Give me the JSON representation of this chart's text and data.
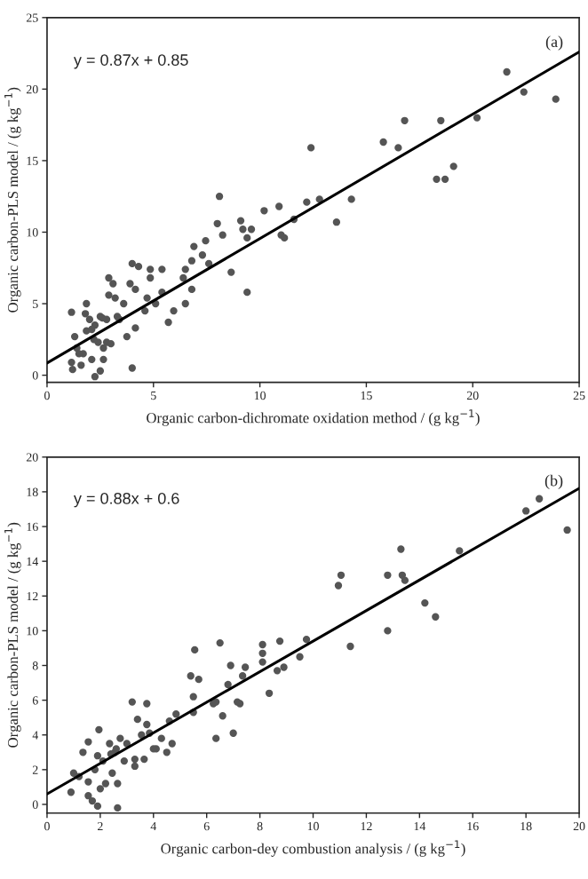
{
  "chart_data": [
    {
      "type": "scatter",
      "xlabel": "Organic carbon-dichromate oxidation method / (g kg$^{−1}$)",
      "ylabel": "Organic carbon-PLS model / (g kg$^{−1}$)",
      "annotations": [
        "y = 0.87x + 0.85",
        "(a)"
      ],
      "xlim": [
        0,
        25
      ],
      "ylim": [
        -0.5,
        25
      ],
      "xticks": [
        0,
        5,
        10,
        15,
        20,
        25
      ],
      "yticks": [
        0,
        5,
        10,
        15,
        20,
        25
      ],
      "grid": false,
      "legend": false,
      "series": [
        {
          "marker": "circle",
          "color": "#555555",
          "x": [
            1.15,
            1.3,
            1.4,
            1.15,
            1.6,
            1.7,
            1.85,
            2.0,
            1.85,
            2.25,
            2.4,
            2.1,
            2.25,
            2.5,
            2.65,
            2.8,
            2.5,
            2.9,
            3.1,
            2.9,
            3.2,
            3.3,
            2.8,
            2.65,
            3.6,
            3.75,
            3.9,
            4.0,
            4.0,
            4.15,
            4.15,
            4.3,
            4.6,
            4.7,
            4.85,
            4.85,
            5.1,
            5.4,
            5.4,
            5.7,
            5.95,
            6.4,
            6.5,
            6.5,
            6.8,
            6.8,
            6.9,
            7.3,
            7.45,
            7.6,
            8.1,
            8.0,
            8.25,
            8.65,
            9.1,
            9.2,
            9.4,
            9.4,
            9.6,
            10.2,
            10.9,
            11.0,
            11.15,
            11.6,
            12.2,
            12.4,
            12.8,
            13.6,
            14.3,
            15.8,
            16.5,
            16.8,
            18.3,
            18.7,
            18.5,
            19.1,
            20.2,
            21.6,
            22.4,
            23.9,
            1.5,
            1.8,
            2.1,
            2.6,
            1.2,
            3.0,
            3.4,
            2.2
          ],
          "values": [
            4.4,
            2.7,
            1.9,
            0.9,
            0.7,
            1.5,
            3.1,
            3.9,
            5.0,
            3.5,
            2.3,
            1.1,
            -0.1,
            0.3,
            1.9,
            3.9,
            4.1,
            5.6,
            6.4,
            6.8,
            5.4,
            4.1,
            2.3,
            1.1,
            5.0,
            2.7,
            6.4,
            0.5,
            7.8,
            6.0,
            3.3,
            7.6,
            4.5,
            5.4,
            6.8,
            7.4,
            5.0,
            5.8,
            7.4,
            3.7,
            4.5,
            6.8,
            7.4,
            5.0,
            6.0,
            8.0,
            9.0,
            8.4,
            9.4,
            7.8,
            12.5,
            10.6,
            9.8,
            7.2,
            10.8,
            10.2,
            9.6,
            5.8,
            10.2,
            11.5,
            11.8,
            9.8,
            9.6,
            10.9,
            12.1,
            15.9,
            12.3,
            10.7,
            12.3,
            16.3,
            15.9,
            17.8,
            13.7,
            13.7,
            17.8,
            14.6,
            18.0,
            21.2,
            19.8,
            19.3,
            1.5,
            4.3,
            3.2,
            4.0,
            0.4,
            2.2,
            3.9,
            2.5
          ]
        },
        {
          "type": "line",
          "color": "#000000",
          "x": [
            0,
            25
          ],
          "values": [
            0.85,
            22.6
          ]
        }
      ]
    },
    {
      "type": "scatter",
      "xlabel": "Organic carbon-dey combustion analysis / (g kg$^{−1}$)",
      "ylabel": "Organic carbon-PLS model / (g kg$^{−1}$)",
      "annotations": [
        "y = 0.88x + 0.6",
        "(b)"
      ],
      "xlim": [
        0,
        20
      ],
      "ylim": [
        -0.5,
        20
      ],
      "xticks": [
        0,
        2,
        4,
        6,
        8,
        10,
        12,
        14,
        16,
        18,
        20
      ],
      "yticks": [
        0,
        2,
        4,
        6,
        8,
        10,
        12,
        14,
        16,
        18,
        20
      ],
      "grid": false,
      "legend": false,
      "series": [
        {
          "marker": "circle",
          "color": "#555555",
          "x": [
            0.9,
            1.0,
            1.35,
            1.55,
            1.55,
            1.55,
            1.7,
            1.8,
            1.9,
            1.9,
            1.95,
            2.1,
            2.2,
            2.35,
            2.45,
            2.55,
            2.65,
            2.65,
            2.75,
            2.9,
            3.0,
            3.2,
            3.3,
            3.4,
            3.55,
            3.65,
            3.75,
            3.75,
            3.85,
            4.1,
            4.3,
            4.5,
            4.6,
            4.7,
            4.85,
            5.4,
            5.5,
            5.5,
            5.55,
            5.7,
            6.25,
            6.35,
            6.35,
            6.5,
            6.6,
            6.8,
            6.9,
            7.0,
            7.15,
            7.25,
            7.35,
            7.45,
            8.1,
            8.1,
            8.1,
            8.35,
            8.65,
            8.75,
            8.9,
            9.5,
            9.75,
            10.95,
            11.05,
            11.4,
            12.8,
            12.8,
            13.3,
            13.35,
            13.45,
            14.2,
            14.6,
            15.5,
            18.0,
            18.5,
            19.55,
            2.0,
            1.2,
            2.4,
            3.3,
            4.0,
            2.6
          ],
          "values": [
            0.7,
            1.8,
            3.0,
            3.6,
            1.3,
            0.5,
            0.2,
            2.0,
            2.8,
            -0.1,
            4.3,
            2.5,
            1.2,
            3.5,
            1.8,
            3.0,
            -0.2,
            1.2,
            3.8,
            2.5,
            3.5,
            5.9,
            2.2,
            4.9,
            4.0,
            2.6,
            5.8,
            4.6,
            4.1,
            3.2,
            3.8,
            3.0,
            4.8,
            3.5,
            5.2,
            7.4,
            5.3,
            6.2,
            8.9,
            7.2,
            5.8,
            5.9,
            3.8,
            9.3,
            5.1,
            6.9,
            8.0,
            4.1,
            5.9,
            5.8,
            7.4,
            7.9,
            9.2,
            8.7,
            8.2,
            6.4,
            7.7,
            9.4,
            7.9,
            8.5,
            9.5,
            12.6,
            13.2,
            9.1,
            13.2,
            10.0,
            14.7,
            13.2,
            12.9,
            11.6,
            10.8,
            14.6,
            16.9,
            17.6,
            15.8,
            0.9,
            1.6,
            2.9,
            2.6,
            3.2,
            3.2
          ]
        },
        {
          "type": "line",
          "color": "#000000",
          "x": [
            0,
            20
          ],
          "values": [
            0.6,
            18.2
          ]
        }
      ]
    }
  ]
}
